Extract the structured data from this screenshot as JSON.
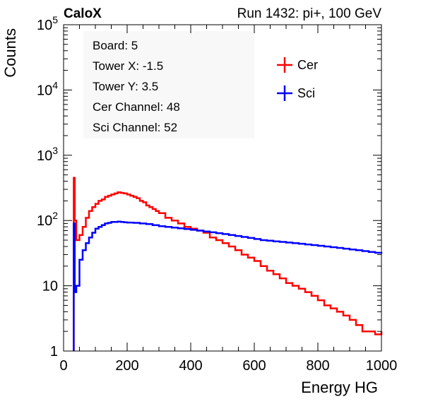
{
  "chart_data": {
    "type": "line",
    "experiment": "CaloX",
    "run_info": "Run 1432: pi+, 100 GeV",
    "xlabel": "Energy HG",
    "ylabel": "Counts",
    "xlim": [
      0,
      1000
    ],
    "ylim": [
      1,
      100000
    ],
    "y_scale": "log",
    "grid": false,
    "legend_position": "top-right",
    "x_ticks": [
      0,
      200,
      400,
      600,
      800,
      1000
    ],
    "y_ticks": [
      {
        "value": 1,
        "base": "1",
        "exp": ""
      },
      {
        "value": 10,
        "base": "10",
        "exp": ""
      },
      {
        "value": 100,
        "base": "10",
        "exp": "2"
      },
      {
        "value": 1000,
        "base": "10",
        "exp": "3"
      },
      {
        "value": 10000,
        "base": "10",
        "exp": "4"
      },
      {
        "value": 100000,
        "base": "10",
        "exp": "5"
      }
    ],
    "info_box": [
      "Board: 5",
      "Tower X: -1.5",
      "Tower Y: 3.5",
      "Cer Channel: 48",
      "Sci Channel: 52"
    ],
    "series": [
      {
        "name": "Cer",
        "color": "#ff0000",
        "x": [
          32,
          35,
          40,
          50,
          60,
          70,
          80,
          90,
          100,
          110,
          120,
          130,
          140,
          150,
          160,
          170,
          180,
          190,
          200,
          210,
          220,
          230,
          240,
          250,
          260,
          270,
          280,
          290,
          300,
          320,
          340,
          360,
          380,
          400,
          420,
          440,
          460,
          480,
          500,
          520,
          540,
          560,
          580,
          600,
          620,
          640,
          660,
          680,
          700,
          720,
          740,
          760,
          780,
          800,
          820,
          840,
          860,
          880,
          900,
          920,
          940,
          960,
          980,
          1000
        ],
        "y": [
          450,
          100,
          50,
          60,
          80,
          110,
          140,
          160,
          180,
          200,
          210,
          230,
          240,
          250,
          260,
          270,
          265,
          260,
          250,
          240,
          230,
          220,
          200,
          190,
          170,
          160,
          150,
          140,
          130,
          110,
          100,
          90,
          80,
          75,
          70,
          65,
          55,
          50,
          45,
          40,
          35,
          30,
          27,
          24,
          20,
          17,
          15,
          13,
          11,
          10,
          9,
          8,
          7,
          6,
          5,
          4.5,
          4,
          3.5,
          3,
          2.5,
          2,
          2,
          1.8,
          2
        ]
      },
      {
        "name": "Sci",
        "color": "#0000ff",
        "x": [
          32,
          35,
          40,
          50,
          60,
          70,
          80,
          90,
          100,
          110,
          120,
          130,
          140,
          150,
          160,
          170,
          180,
          190,
          200,
          220,
          240,
          260,
          280,
          300,
          320,
          340,
          360,
          380,
          400,
          420,
          440,
          460,
          480,
          500,
          520,
          540,
          560,
          580,
          600,
          620,
          640,
          660,
          680,
          700,
          720,
          740,
          760,
          780,
          800,
          820,
          840,
          860,
          880,
          900,
          920,
          940,
          960,
          980,
          1000
        ],
        "y": [
          90,
          8,
          10,
          25,
          35,
          45,
          55,
          65,
          75,
          80,
          85,
          90,
          92,
          95,
          95,
          96,
          95,
          94,
          93,
          92,
          90,
          88,
          85,
          82,
          80,
          78,
          76,
          74,
          72,
          70,
          68,
          66,
          64,
          62,
          60,
          58,
          56,
          54,
          52,
          50,
          49,
          48,
          47,
          46,
          45,
          44,
          43,
          42,
          41,
          40,
          39,
          38,
          37,
          36,
          35,
          34,
          33,
          32,
          33
        ]
      }
    ]
  }
}
